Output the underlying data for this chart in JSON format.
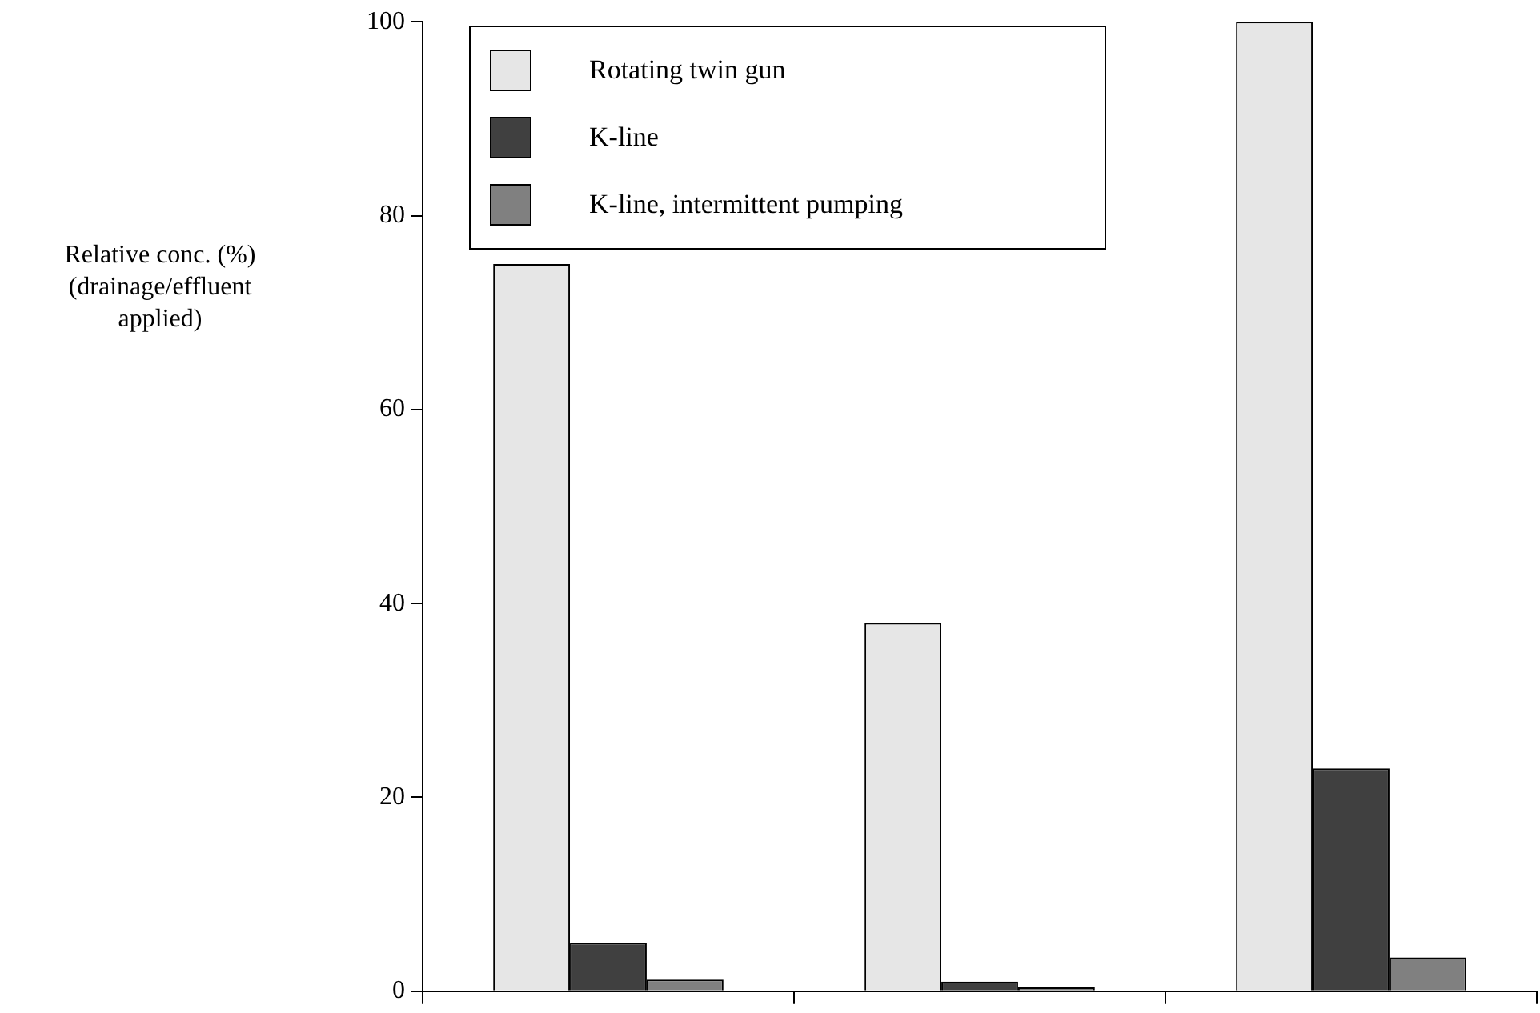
{
  "chart_data": {
    "type": "bar",
    "ylabel": "Relative conc. (%) (drainage/effluent applied)",
    "categories": [
      null,
      null,
      null
    ],
    "series": [
      {
        "name": "Rotating twin gun",
        "color": "#e6e6e6",
        "values": [
          75,
          38,
          100
        ]
      },
      {
        "name": "K-line",
        "color": "#404040",
        "values": [
          5,
          1,
          23
        ]
      },
      {
        "name": "K-line, intermittent pumping",
        "color": "#808080",
        "values": [
          1.2,
          0.4,
          3.5
        ]
      }
    ],
    "ylim": [
      0,
      100
    ],
    "yticks": [
      0,
      20,
      40,
      60,
      80,
      100
    ],
    "grid": false,
    "legend": "top"
  }
}
